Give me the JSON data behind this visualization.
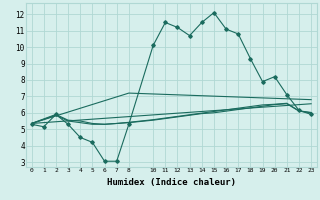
{
  "title": "",
  "xlabel": "Humidex (Indice chaleur)",
  "ylabel": "",
  "xlim": [
    -0.5,
    23.5
  ],
  "ylim": [
    2.7,
    12.7
  ],
  "xticks": [
    0,
    1,
    2,
    3,
    4,
    5,
    6,
    7,
    8,
    10,
    11,
    12,
    13,
    14,
    15,
    16,
    17,
    18,
    19,
    20,
    21,
    22,
    23
  ],
  "yticks": [
    3,
    4,
    5,
    6,
    7,
    8,
    9,
    10,
    11,
    12
  ],
  "bg_color": "#d6efec",
  "grid_color": "#b0d8d4",
  "line_color": "#1a6b5e",
  "line1_x": [
    0,
    1,
    2,
    3,
    4,
    5,
    6,
    7,
    8,
    10,
    11,
    12,
    13,
    14,
    15,
    16,
    17,
    18,
    19,
    20,
    21,
    22,
    23
  ],
  "line1_y": [
    5.3,
    5.15,
    5.9,
    5.3,
    4.5,
    4.2,
    3.05,
    3.05,
    5.3,
    10.1,
    11.5,
    11.2,
    10.7,
    11.5,
    12.1,
    11.1,
    10.8,
    9.3,
    7.9,
    8.2,
    7.1,
    6.15,
    5.9
  ],
  "line2_x": [
    0,
    2,
    3,
    4,
    5,
    6,
    7,
    8,
    10,
    11,
    12,
    13,
    14,
    15,
    16,
    17,
    18,
    19,
    20,
    21,
    22,
    23
  ],
  "line2_y": [
    5.35,
    5.9,
    5.55,
    5.5,
    5.35,
    5.3,
    5.35,
    5.4,
    5.55,
    5.65,
    5.75,
    5.85,
    5.95,
    6.0,
    6.1,
    6.2,
    6.3,
    6.4,
    6.5,
    6.55,
    6.1,
    6.0
  ],
  "line3_x": [
    0,
    2,
    3,
    4,
    5,
    6,
    7,
    8,
    10,
    11,
    12,
    13,
    14,
    15,
    16,
    17,
    18,
    19,
    20,
    21,
    22,
    23
  ],
  "line3_y": [
    5.35,
    5.85,
    5.5,
    5.4,
    5.3,
    5.3,
    5.35,
    5.42,
    5.58,
    5.68,
    5.78,
    5.88,
    5.98,
    6.08,
    6.18,
    6.28,
    6.38,
    6.48,
    6.52,
    6.58,
    6.12,
    6.02
  ],
  "line4_x": [
    0,
    8,
    23
  ],
  "line4_y": [
    5.35,
    7.2,
    6.8
  ],
  "line5_x": [
    0,
    23
  ],
  "line5_y": [
    5.35,
    6.55
  ]
}
